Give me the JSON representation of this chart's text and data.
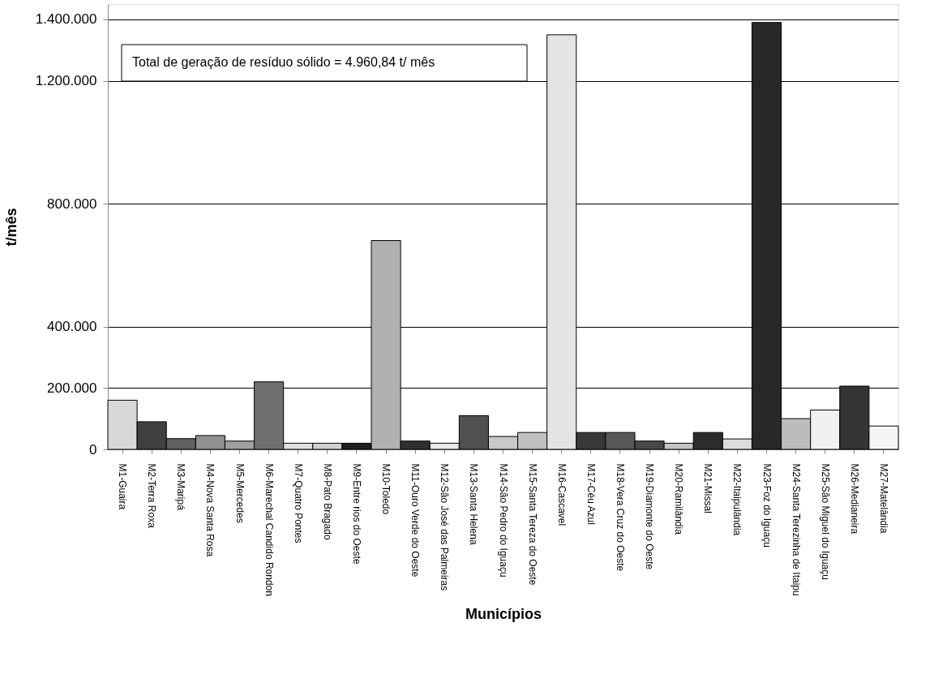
{
  "chart_data": {
    "type": "bar",
    "xlabel": "Municípios",
    "ylabel": "t/mês",
    "categories": [
      "M1-Guaira",
      "M2-Terra Roxa",
      "M3-Maripá",
      "M4-Nova Santa Rosa",
      "M5-Mercedes",
      "M6-Marechal Candido Rondon",
      "M7-Quatro Pontes",
      "M8-Pato Bragado",
      "M9-Entre rios do Oeste",
      "M10-Toledo",
      "M11-Ouro Verde do Oeste",
      "M12-São José das Palmeiras",
      "M13-Santa Helena",
      "M14-São Pedro do Iguaçu",
      "M15-Santa Tereza do Oeste",
      "M16-Cascavel",
      "M17-Céu Azul",
      "M18-Vera Cruz do Oeste",
      "M19-Diamonte do Oeste",
      "M20-Ramilândia",
      "M21-Missal",
      "M22-Itaipulândia",
      "M23-Foz do Iguaçu",
      "M24-Santa Terezinha de Itaipu",
      "M25-São Miguel do Iguaçu",
      "M26-Medianeira",
      "M27-Matelândia"
    ],
    "values": [
      160000,
      90000,
      35000,
      45000,
      27000,
      220000,
      20000,
      20000,
      20000,
      680000,
      27000,
      20000,
      110000,
      42000,
      55000,
      1350000,
      55000,
      55000,
      27000,
      20000,
      55000,
      34000,
      1390000,
      100000,
      128000,
      206000,
      76000
    ],
    "colors": [
      "#d8d8d8",
      "#404040",
      "#606060",
      "#909090",
      "#a0a0a0",
      "#707070",
      "#e0e0e0",
      "#d0d0d0",
      "#202020",
      "#b0b0b0",
      "#303030",
      "#e8e8e8",
      "#505050",
      "#c8c8c8",
      "#c0c0c0",
      "#e4e4e4",
      "#383838",
      "#585858",
      "#484848",
      "#c4c4c4",
      "#2c2c2c",
      "#dcdcdc",
      "#282828",
      "#bcbcbc",
      "#f0f0f0",
      "#343434",
      "#f4f4f4"
    ],
    "ylim": [
      0,
      1450000
    ],
    "yticks": [
      0,
      {
        "value": 200000,
        "label": "200.000"
      },
      {
        "value": 400000,
        "label": "400.000"
      },
      {
        "value": 800000,
        "label": "800.000"
      },
      {
        "value": 1200000,
        "label": "1.200.000"
      },
      {
        "value": 1400000,
        "label": "1.400.000"
      }
    ],
    "grid": "y",
    "annotations": [
      "Total de geração de resíduo sólido = 4.960,84 t/ mês"
    ]
  }
}
